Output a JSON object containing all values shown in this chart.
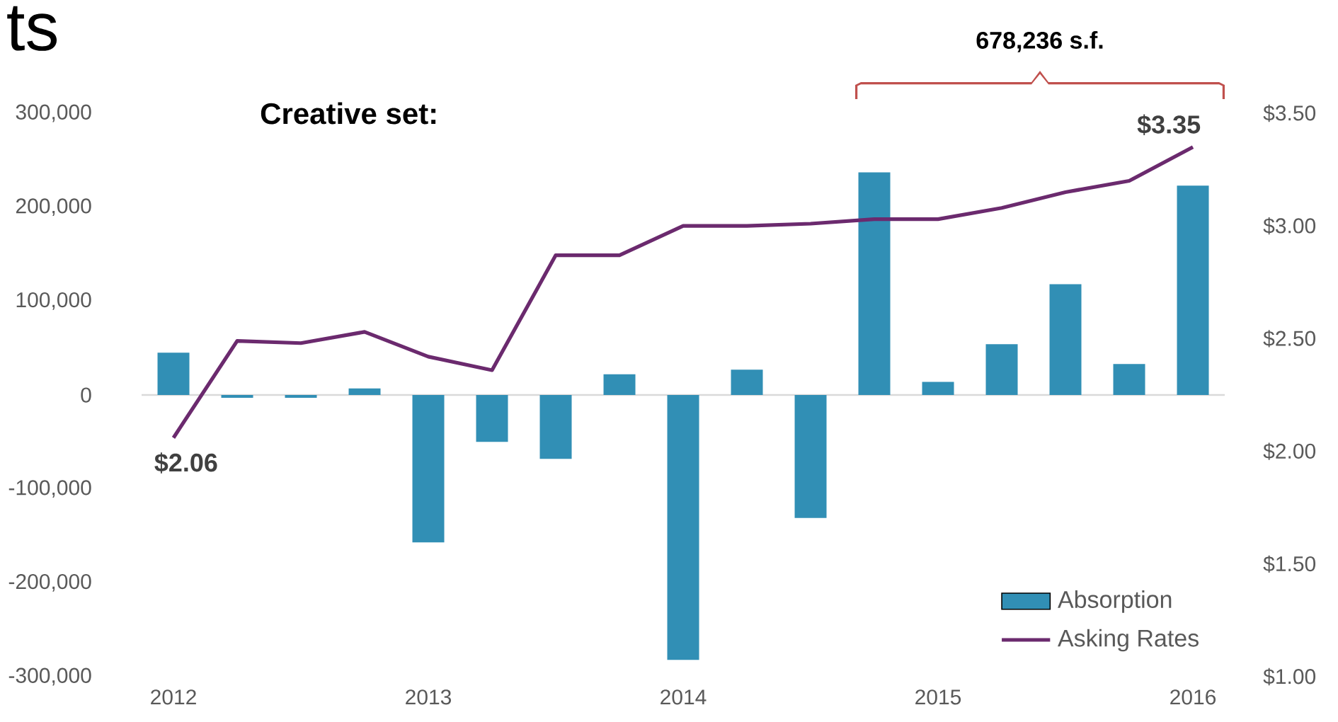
{
  "chart_data": {
    "type": "bar",
    "title": "ts",
    "annotations": [
      "Creative set:",
      "678,236 s.f."
    ],
    "categories": [
      "2012",
      null,
      null,
      null,
      "2013",
      null,
      null,
      null,
      "2014",
      null,
      null,
      null,
      "2015",
      null,
      null,
      null,
      "2016"
    ],
    "series": [
      {
        "name": "Absorption",
        "type": "bar",
        "color": "#318fb5",
        "values": [
          45000,
          -3000,
          -3000,
          7000,
          -157000,
          -50000,
          -68000,
          22000,
          -282000,
          27000,
          -131000,
          237000,
          14000,
          54000,
          118000,
          33000,
          223000
        ]
      },
      {
        "name": "Asking Rates",
        "type": "line",
        "axis": "y2",
        "color": "#6b2a6e",
        "values": [
          2.06,
          2.49,
          2.48,
          2.53,
          2.42,
          2.36,
          2.87,
          2.87,
          3.0,
          3.0,
          3.01,
          3.03,
          3.03,
          3.08,
          3.15,
          3.2,
          3.35
        ],
        "value_labels": [
          "$2.06",
          null,
          null,
          null,
          null,
          null,
          null,
          null,
          null,
          null,
          null,
          null,
          null,
          null,
          null,
          null,
          "$3.35"
        ]
      }
    ],
    "ylim": [
      -300000,
      300000
    ],
    "yticks": [
      {
        "value": -300000,
        "label": "-300,000"
      },
      {
        "value": -200000,
        "label": "-200,000"
      },
      {
        "value": -100000,
        "label": "-100,000"
      },
      0,
      {
        "value": 100000,
        "label": "100,000"
      },
      {
        "value": 200000,
        "label": "200,000"
      },
      {
        "value": 300000,
        "label": "300,000"
      }
    ],
    "y2lim": [
      1.0,
      3.5
    ],
    "y2ticks": [
      {
        "value": 1.0,
        "label": "$1.00"
      },
      {
        "value": 1.5,
        "label": "$1.50"
      },
      {
        "value": 2.0,
        "label": "$2.00"
      },
      {
        "value": 2.5,
        "label": "$2.50"
      },
      {
        "value": 3.0,
        "label": "$3.00"
      },
      {
        "value": 3.5,
        "label": "$3.50"
      }
    ],
    "legend": "bottom right",
    "marker": "none"
  }
}
